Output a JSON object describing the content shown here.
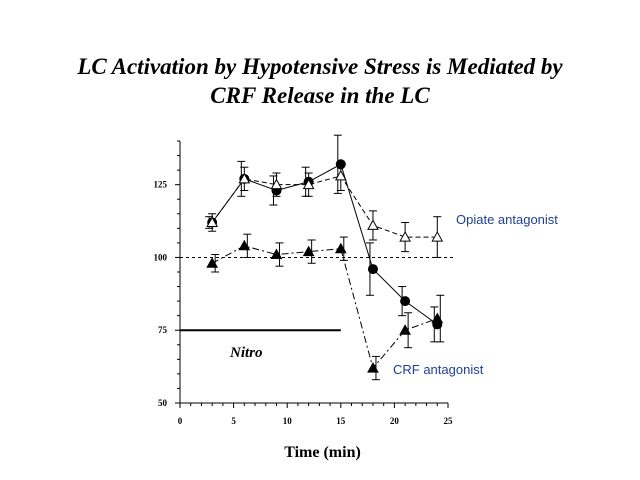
{
  "title_line1": "LC Activation by Hypotensive Stress is Mediated by",
  "title_line2": "CRF Release in the LC",
  "chart_data": {
    "type": "line",
    "title": "LC Activation by Hypotensive Stress is Mediated by CRF Release in the LC",
    "xlabel": "Time (min)",
    "ylabel": "",
    "xlim": [
      0,
      25
    ],
    "ylim": [
      50,
      140
    ],
    "x_ticks": [
      "0",
      "5",
      "10",
      "15",
      "20",
      "25"
    ],
    "y_ticks": [
      "50",
      "75",
      "100",
      "125"
    ],
    "grid": false,
    "reference_line_y": 100,
    "series": [
      {
        "name": "",
        "marker": "circle-filled",
        "line_style": "solid",
        "x": [
          3,
          6,
          9,
          12,
          15,
          18,
          21,
          24
        ],
        "y": [
          112,
          127,
          123,
          126,
          132,
          96,
          85,
          77
        ],
        "err": [
          2,
          6,
          5,
          5,
          10,
          9,
          5,
          6
        ]
      },
      {
        "name": "Opiate antagonist",
        "marker": "triangle-open",
        "line_style": "dashed",
        "x": [
          3,
          6,
          9,
          12,
          15,
          18,
          21,
          24
        ],
        "y": [
          112,
          127,
          125,
          125,
          128,
          111,
          107,
          107
        ],
        "err": [
          3,
          4,
          4,
          4,
          5,
          5,
          5,
          7
        ]
      },
      {
        "name": "CRF antagonist",
        "marker": "triangle-filled",
        "line_style": "dashdot",
        "x": [
          3,
          6,
          9,
          12,
          15,
          18,
          21,
          24
        ],
        "y": [
          98,
          104,
          101,
          102,
          103,
          62,
          75,
          79
        ],
        "err": [
          3,
          4,
          4,
          4,
          4,
          4,
          6,
          8
        ]
      }
    ],
    "annotations": [
      {
        "text": "Opiate antagonist",
        "color": "#1f3f8f"
      },
      {
        "text": "CRF antagonist",
        "color": "#1f3f8f"
      },
      {
        "text": "Nitro",
        "bar_from": 0,
        "bar_to": 15,
        "bar_y": 75
      }
    ]
  }
}
